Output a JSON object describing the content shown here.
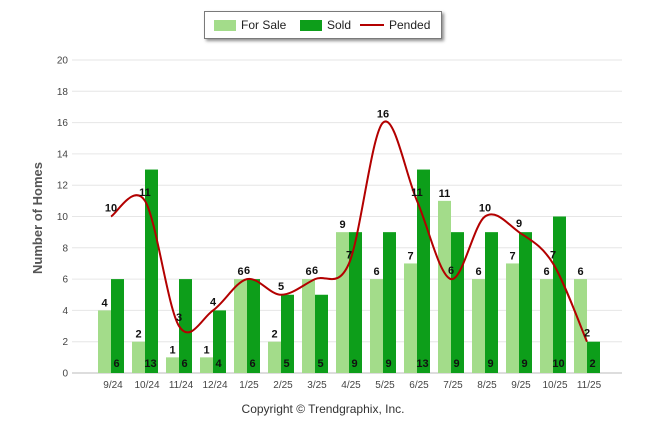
{
  "chart_data": {
    "type": "bar",
    "title": "",
    "xlabel": "",
    "ylabel": "Number of Homes",
    "ylim": [
      0,
      20
    ],
    "yticks": [
      "0",
      "2",
      "4",
      "6",
      "8",
      "10",
      "12",
      "14",
      "16",
      "18",
      "20"
    ],
    "grid": true,
    "legend_position": "top-center",
    "categories": [
      "9/24",
      "10/24",
      "11/24",
      "12/24",
      "1/25",
      "2/25",
      "3/25",
      "4/25",
      "5/25",
      "6/25",
      "7/25",
      "8/25",
      "9/25",
      "10/25",
      "11/25"
    ],
    "series": [
      {
        "name": "For Sale",
        "kind": "bar",
        "color": "#a3dc8a",
        "values": [
          4,
          2,
          1,
          1,
          6,
          2,
          6,
          9,
          6,
          7,
          11,
          6,
          7,
          6,
          6
        ]
      },
      {
        "name": "Sold",
        "kind": "bar",
        "color": "#0d9e1a",
        "values": [
          6,
          13,
          6,
          4,
          6,
          5,
          5,
          9,
          9,
          13,
          9,
          9,
          9,
          10,
          2
        ]
      },
      {
        "name": "Pended",
        "kind": "line",
        "color": "#b30000",
        "values": [
          10,
          11,
          3,
          4,
          6,
          5,
          6,
          7,
          16,
          11,
          6,
          10,
          9,
          7,
          2
        ]
      }
    ],
    "footer": "Copyright © Trendgraphix, Inc."
  }
}
